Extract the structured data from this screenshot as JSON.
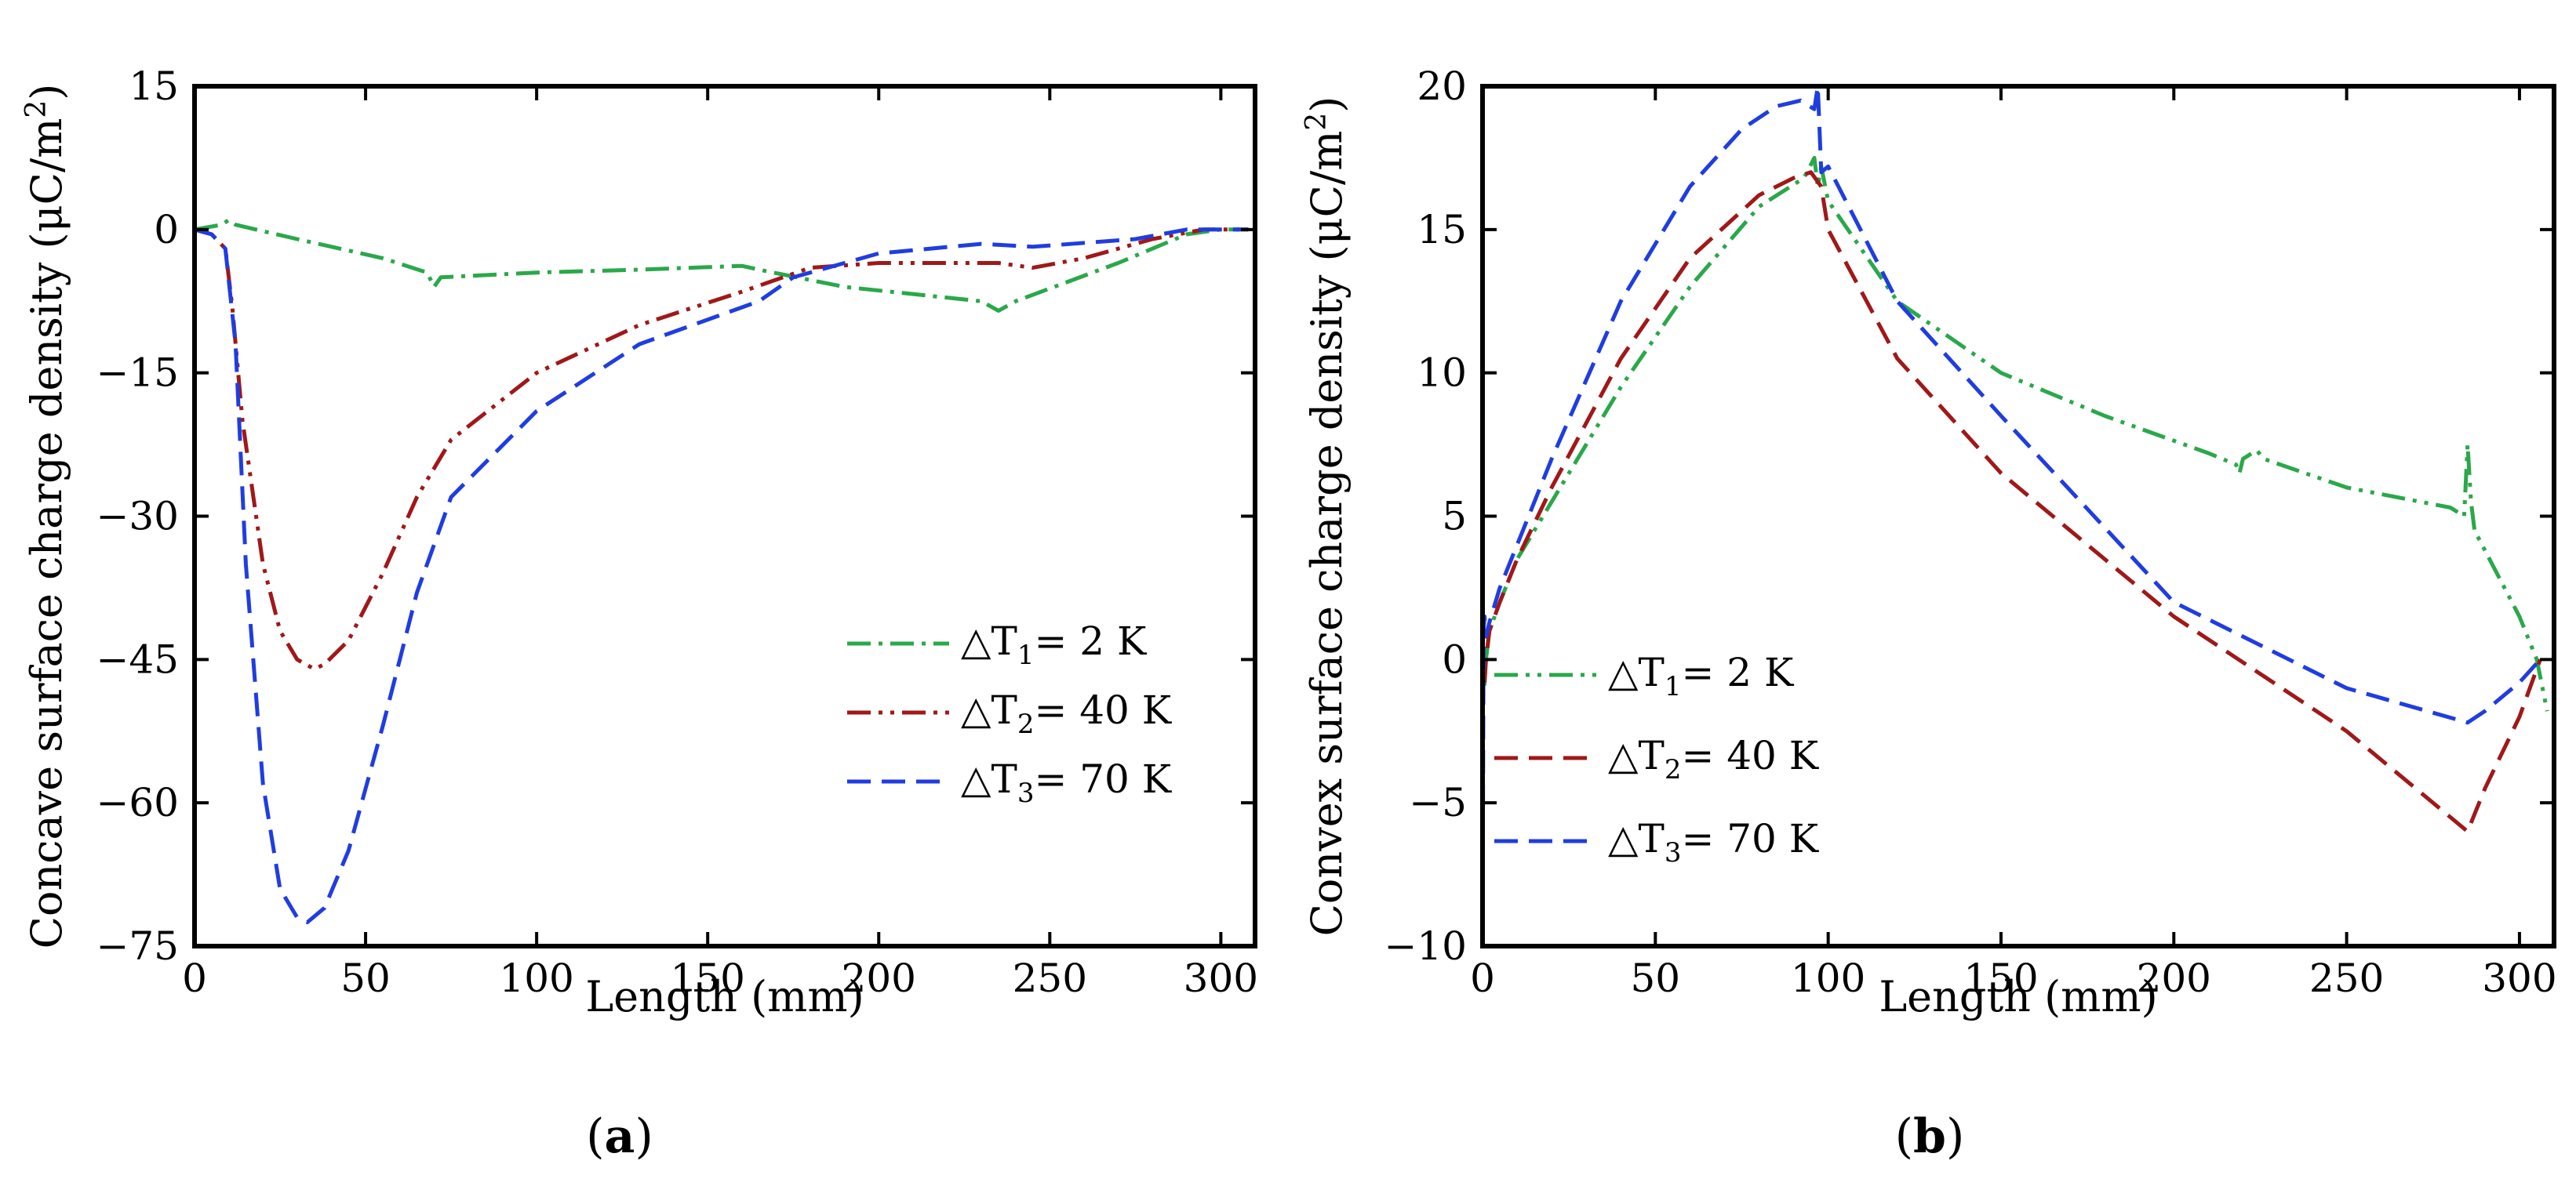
{
  "chart_data": [
    {
      "type": "line",
      "panel": "a",
      "caption": "(a)",
      "caption_parts": [
        "(",
        "a",
        ")"
      ],
      "xlabel": "Length (mm)",
      "ylabel": "Concave surface charge density (μC/m²)",
      "ylabel_parts": {
        "main": "Concave surface charge density (μC/m",
        "sup": "2",
        "tail": ")"
      },
      "xlim": [
        0,
        310
      ],
      "ylim": [
        -75,
        15
      ],
      "xticks": [
        0,
        50,
        100,
        150,
        200,
        250,
        300
      ],
      "yticks": [
        15,
        0,
        -15,
        -30,
        -45,
        -60,
        -75
      ],
      "xtick_labels": [
        "0",
        "50",
        "100",
        "150",
        "200",
        "250",
        "300"
      ],
      "ytick_labels": [
        "15",
        "0",
        "−15",
        "−30",
        "−45",
        "−60",
        "−75"
      ],
      "legend_position": "lower-right",
      "series": [
        {
          "name": "ΔT1= 2 K",
          "label": {
            "pre": "△T",
            "sub": "1",
            "post": "=   2 K"
          },
          "color": "#2aa84a",
          "dash": "dashdot",
          "x": [
            0,
            8,
            10,
            12,
            30,
            55,
            68,
            70,
            72,
            100,
            130,
            160,
            165,
            190,
            230,
            235,
            240,
            270,
            290,
            300,
            308
          ],
          "y": [
            0,
            0.5,
            1,
            0.5,
            -1,
            -3,
            -4.5,
            -6,
            -5,
            -4.5,
            -4.2,
            -3.8,
            -4.2,
            -6,
            -7.5,
            -8.5,
            -7.5,
            -3.5,
            -0.5,
            0,
            0
          ]
        },
        {
          "name": "ΔT2= 40 K",
          "label": {
            "pre": "△T",
            "sub": "2",
            "post": "= 40 K"
          },
          "color": "#a01818",
          "dash": "dashdotdot",
          "x": [
            0,
            5,
            9,
            11,
            14,
            20,
            25,
            30,
            35,
            38,
            45,
            55,
            65,
            75,
            100,
            130,
            160,
            180,
            200,
            220,
            235,
            245,
            260,
            280,
            295,
            308
          ],
          "y": [
            0,
            -0.5,
            -2,
            -8,
            -20,
            -35,
            -42,
            -45,
            -46,
            -45.5,
            -43,
            -36,
            -28,
            -22,
            -15,
            -10,
            -6.5,
            -4,
            -3.5,
            -3.5,
            -3.5,
            -4,
            -3,
            -1,
            0,
            0
          ]
        },
        {
          "name": "ΔT3= 70 K",
          "label": {
            "pre": "△T",
            "sub": "3",
            "post": "= 70 K"
          },
          "color": "#1f3de0",
          "dash": "dashed",
          "x": [
            0,
            5,
            9,
            12,
            15,
            20,
            25,
            30,
            33,
            38,
            45,
            55,
            65,
            75,
            100,
            130,
            165,
            175,
            200,
            230,
            245,
            275,
            290,
            308
          ],
          "y": [
            0,
            -0.5,
            -2,
            -12,
            -35,
            -58,
            -69,
            -72,
            -72.5,
            -71,
            -65,
            -52,
            -38,
            -28,
            -19,
            -12,
            -7.5,
            -5,
            -2.5,
            -1.5,
            -1.8,
            -1,
            0,
            0
          ]
        }
      ]
    },
    {
      "type": "line",
      "panel": "b",
      "caption": "(b)",
      "caption_parts": [
        "(",
        "b",
        ")"
      ],
      "xlabel": "Length (mm)",
      "ylabel": "Convex surface charge density (μC/m²)",
      "ylabel_parts": {
        "main": "Convex surface charge density (μC/m",
        "sup": "2",
        "tail": ")"
      },
      "xlim": [
        0,
        310
      ],
      "ylim": [
        -10,
        20
      ],
      "xticks": [
        0,
        50,
        100,
        150,
        200,
        250,
        300
      ],
      "yticks": [
        20,
        15,
        10,
        5,
        0,
        -5,
        -10
      ],
      "xtick_labels": [
        "0",
        "50",
        "100",
        "150",
        "200",
        "250",
        "300"
      ],
      "ytick_labels": [
        "20",
        "15",
        "10",
        "5",
        "0",
        "−5",
        "−10"
      ],
      "legend_position": "lower-left",
      "series": [
        {
          "name": "ΔT1= 2 K",
          "label": {
            "pre": "△T",
            "sub": "1",
            "post": "=   2 K"
          },
          "color": "#2aa84a",
          "dash": "dashdotdot",
          "x": [
            0,
            0.5,
            1,
            2,
            5,
            10,
            20,
            40,
            60,
            80,
            93,
            96,
            97,
            98,
            100,
            120,
            150,
            180,
            210,
            218,
            219,
            220,
            224,
            226,
            250,
            280,
            284,
            285,
            286,
            287,
            300,
            305,
            308
          ],
          "y": [
            0,
            -1,
            0,
            1,
            2,
            3.5,
            5.5,
            9.5,
            13,
            15.8,
            16.8,
            17.5,
            16.5,
            17.2,
            16,
            12.5,
            10,
            8.5,
            7.2,
            6.8,
            6.5,
            7,
            7.3,
            7,
            6,
            5.3,
            5,
            7.5,
            5.5,
            4.5,
            1.5,
            0,
            -1.8
          ]
        },
        {
          "name": "ΔT2= 40 K",
          "label": {
            "pre": "△T",
            "sub": "2",
            "post": "= 40 K"
          },
          "color": "#a01818",
          "dash": "dashed",
          "x": [
            0,
            0.5,
            1,
            2,
            5,
            10,
            20,
            40,
            60,
            80,
            90,
            95,
            98,
            100,
            120,
            150,
            200,
            250,
            285,
            290,
            300,
            306
          ],
          "y": [
            0,
            -1,
            0,
            1,
            2,
            3.5,
            6,
            10.5,
            14,
            16.2,
            16.8,
            17,
            16.5,
            15,
            10.5,
            6.5,
            1.5,
            -2.5,
            -6,
            -4.5,
            -2,
            0
          ]
        },
        {
          "name": "ΔT3= 70 K",
          "label": {
            "pre": "△T",
            "sub": "3",
            "post": "= 70 K"
          },
          "color": "#1f3de0",
          "dash": "dashed",
          "x": [
            0,
            0.3,
            0.6,
            1,
            2,
            5,
            10,
            20,
            40,
            60,
            75,
            85,
            92,
            96,
            97,
            98,
            100,
            120,
            150,
            200,
            250,
            285,
            290,
            300,
            306
          ],
          "y": [
            -10,
            1,
            1.5,
            0.8,
            1.3,
            2.5,
            4,
            7,
            12.5,
            16.5,
            18.5,
            19.3,
            19.5,
            19.2,
            20,
            17,
            17.2,
            12.5,
            8.5,
            2,
            -1,
            -2.2,
            -1.8,
            -0.8,
            0
          ]
        }
      ]
    }
  ]
}
